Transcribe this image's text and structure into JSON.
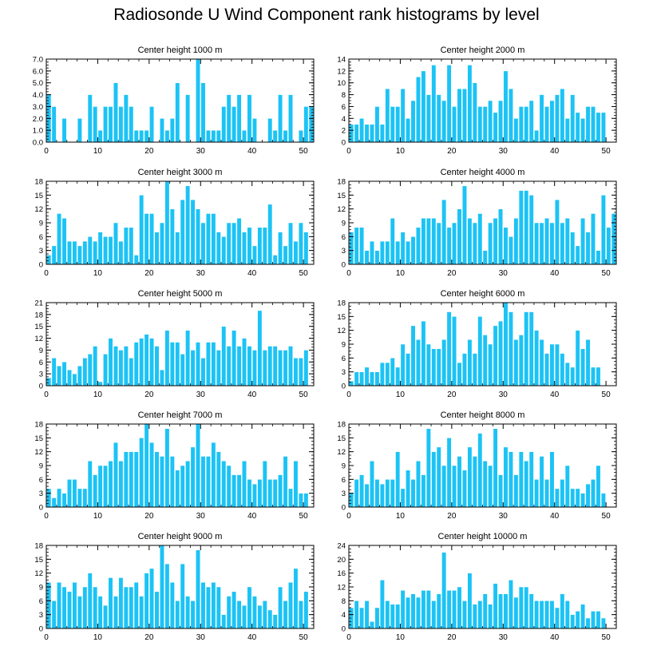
{
  "title": "Radiosonde U Wind Component rank histograms by level",
  "colors": {
    "bar": "#1CC3F5",
    "bar_edge": "#ffffff",
    "axis": "#000000"
  },
  "chart_data": [
    {
      "type": "bar",
      "title": "Center height 1000 m",
      "xlim": [
        0,
        52
      ],
      "ylim": [
        0,
        7
      ],
      "xticks": [
        0,
        10,
        20,
        30,
        40,
        50
      ],
      "yticks": [
        0,
        1,
        2,
        3,
        4,
        5,
        6,
        7
      ],
      "ytick_labels": [
        "0.0",
        "1.0",
        "2.0",
        "3.0",
        "4.0",
        "5.0",
        "6.0",
        "7.0"
      ],
      "values": [
        4,
        3,
        0,
        2,
        0,
        0,
        2,
        0,
        4,
        3,
        1,
        3,
        3,
        5,
        3,
        4,
        3,
        1,
        1,
        1,
        3,
        0,
        2,
        1,
        2,
        5,
        0,
        4,
        0,
        7,
        5,
        1,
        1,
        1,
        3,
        4,
        3,
        4,
        1,
        4,
        2,
        0,
        0,
        2,
        1,
        4,
        1,
        4,
        0,
        1,
        3,
        3
      ]
    },
    {
      "type": "bar",
      "title": "Center height 2000 m",
      "xlim": [
        0,
        52
      ],
      "ylim": [
        0,
        14
      ],
      "xticks": [
        0,
        10,
        20,
        30,
        40,
        50
      ],
      "yticks": [
        0,
        2,
        4,
        6,
        8,
        10,
        12,
        14
      ],
      "ytick_labels": [
        "0",
        "2",
        "4",
        "6",
        "8",
        "10",
        "12",
        "14"
      ],
      "values": [
        3,
        3,
        4,
        3,
        3,
        6,
        3,
        9,
        6,
        6,
        9,
        4,
        7,
        11,
        12,
        8,
        13,
        8,
        7,
        13,
        6,
        9,
        9,
        13,
        10,
        6,
        6,
        7,
        5,
        7,
        12,
        9,
        4,
        6,
        6,
        7,
        2,
        8,
        6,
        7,
        8,
        9,
        4,
        8,
        5,
        4,
        6,
        6,
        5,
        5,
        0,
        0
      ]
    },
    {
      "type": "bar",
      "title": "Center height 3000 m",
      "xlim": [
        0,
        52
      ],
      "ylim": [
        0,
        18
      ],
      "xticks": [
        0,
        10,
        20,
        30,
        40,
        50
      ],
      "yticks": [
        0,
        3,
        6,
        9,
        12,
        15,
        18
      ],
      "ytick_labels": [
        "0",
        "3",
        "6",
        "9",
        "12",
        "15",
        "18"
      ],
      "values": [
        2,
        4,
        11,
        10,
        5,
        5,
        4,
        5,
        6,
        5,
        7,
        6,
        6,
        9,
        5,
        8,
        8,
        2,
        15,
        11,
        11,
        7,
        9,
        18,
        12,
        7,
        14,
        17,
        14,
        12,
        9,
        11,
        11,
        7,
        6,
        9,
        9,
        10,
        7,
        8,
        4,
        8,
        8,
        13,
        2,
        7,
        4,
        9,
        5,
        9,
        7,
        0
      ]
    },
    {
      "type": "bar",
      "title": "Center height 4000 m",
      "xlim": [
        0,
        52
      ],
      "ylim": [
        0,
        18
      ],
      "xticks": [
        0,
        10,
        20,
        30,
        40,
        50
      ],
      "yticks": [
        0,
        3,
        6,
        9,
        12,
        15,
        18
      ],
      "ytick_labels": [
        "0",
        "3",
        "6",
        "9",
        "12",
        "15",
        "18"
      ],
      "values": [
        7,
        8,
        8,
        3,
        5,
        3,
        5,
        5,
        10,
        5,
        7,
        5,
        6,
        8,
        10,
        10,
        10,
        9,
        14,
        8,
        9,
        12,
        17,
        10,
        9,
        11,
        3,
        9,
        10,
        12,
        8,
        6,
        10,
        16,
        16,
        15,
        9,
        9,
        10,
        9,
        14,
        9,
        10,
        7,
        4,
        10,
        7,
        11,
        3,
        15,
        8,
        11
      ]
    },
    {
      "type": "bar",
      "title": "Center height 5000 m",
      "xlim": [
        0,
        52
      ],
      "ylim": [
        0,
        21
      ],
      "xticks": [
        0,
        10,
        20,
        30,
        40,
        50
      ],
      "yticks": [
        0,
        3,
        6,
        9,
        12,
        15,
        18,
        21
      ],
      "ytick_labels": [
        "0",
        "3",
        "6",
        "9",
        "12",
        "15",
        "18",
        "21"
      ],
      "values": [
        2,
        7,
        5,
        6,
        4,
        3,
        5,
        7,
        8,
        10,
        1,
        8,
        12,
        10,
        9,
        10,
        7,
        11,
        12,
        13,
        12,
        10,
        4,
        14,
        11,
        11,
        8,
        14,
        9,
        11,
        7,
        11,
        11,
        9,
        15,
        10,
        14,
        10,
        12,
        10,
        9,
        19,
        9,
        10,
        10,
        9,
        9,
        10,
        7,
        7,
        9,
        0
      ]
    },
    {
      "type": "bar",
      "title": "Center height 6000 m",
      "xlim": [
        0,
        52
      ],
      "ylim": [
        0,
        18
      ],
      "xticks": [
        0,
        10,
        20,
        30,
        40,
        50
      ],
      "yticks": [
        0,
        3,
        6,
        9,
        12,
        15,
        18
      ],
      "ytick_labels": [
        "0",
        "3",
        "6",
        "9",
        "12",
        "15",
        "18"
      ],
      "values": [
        1,
        3,
        3,
        4,
        3,
        3,
        5,
        5,
        6,
        4,
        9,
        7,
        13,
        10,
        14,
        9,
        8,
        8,
        10,
        16,
        15,
        5,
        7,
        10,
        7,
        15,
        11,
        9,
        13,
        14,
        18,
        16,
        10,
        11,
        16,
        16,
        12,
        10,
        7,
        9,
        9,
        7,
        5,
        4,
        12,
        8,
        10,
        4,
        4,
        0,
        0,
        0
      ]
    },
    {
      "type": "bar",
      "title": "Center height 7000 m",
      "xlim": [
        0,
        52
      ],
      "ylim": [
        0,
        18
      ],
      "xticks": [
        0,
        10,
        20,
        30,
        40,
        50
      ],
      "yticks": [
        0,
        3,
        6,
        9,
        12,
        15,
        18
      ],
      "ytick_labels": [
        "0",
        "3",
        "6",
        "9",
        "12",
        "15",
        "18"
      ],
      "values": [
        4,
        2,
        4,
        3,
        6,
        6,
        4,
        4,
        10,
        7,
        9,
        9,
        10,
        14,
        10,
        12,
        12,
        12,
        15,
        18,
        14,
        12,
        11,
        17,
        11,
        8,
        9,
        10,
        13,
        18,
        11,
        11,
        14,
        12,
        10,
        9,
        7,
        7,
        10,
        6,
        5,
        6,
        10,
        6,
        6,
        7,
        11,
        4,
        10,
        3,
        3,
        0
      ]
    },
    {
      "type": "bar",
      "title": "Center height 8000 m",
      "xlim": [
        0,
        52
      ],
      "ylim": [
        0,
        18
      ],
      "xticks": [
        0,
        10,
        20,
        30,
        40,
        50
      ],
      "yticks": [
        0,
        3,
        6,
        9,
        12,
        15,
        18
      ],
      "ytick_labels": [
        "0",
        "3",
        "6",
        "9",
        "12",
        "15",
        "18"
      ],
      "values": [
        3,
        6,
        7,
        5,
        10,
        6,
        5,
        6,
        6,
        12,
        4,
        8,
        6,
        10,
        7,
        17,
        12,
        13,
        9,
        15,
        9,
        11,
        8,
        13,
        11,
        16,
        10,
        9,
        17,
        7,
        13,
        12,
        7,
        12,
        10,
        12,
        6,
        11,
        6,
        12,
        4,
        6,
        9,
        4,
        4,
        3,
        5,
        6,
        9,
        3,
        0,
        0
      ]
    },
    {
      "type": "bar",
      "title": "Center height 9000 m",
      "xlim": [
        0,
        52
      ],
      "ylim": [
        0,
        18
      ],
      "xticks": [
        0,
        10,
        20,
        30,
        40,
        50
      ],
      "yticks": [
        0,
        3,
        6,
        9,
        12,
        15,
        18
      ],
      "ytick_labels": [
        "0",
        "3",
        "6",
        "9",
        "12",
        "15",
        "18"
      ],
      "values": [
        10,
        6,
        10,
        9,
        8,
        10,
        7,
        9,
        12,
        9,
        7,
        5,
        11,
        7,
        11,
        9,
        9,
        10,
        7,
        12,
        13,
        8,
        18,
        14,
        10,
        6,
        14,
        7,
        6,
        17,
        10,
        9,
        10,
        9,
        3,
        7,
        8,
        6,
        5,
        9,
        7,
        5,
        6,
        4,
        3,
        9,
        6,
        10,
        13,
        6,
        8,
        0
      ]
    },
    {
      "type": "bar",
      "title": "Center height 10000 m",
      "xlim": [
        0,
        52
      ],
      "ylim": [
        0,
        24
      ],
      "xticks": [
        0,
        10,
        20,
        30,
        40,
        50
      ],
      "yticks": [
        0,
        4,
        8,
        12,
        16,
        20,
        24
      ],
      "ytick_labels": [
        "0",
        "4",
        "8",
        "12",
        "16",
        "20",
        "24"
      ],
      "values": [
        6,
        8,
        6,
        8,
        2,
        6,
        14,
        8,
        7,
        7,
        11,
        9,
        10,
        9,
        11,
        11,
        8,
        10,
        22,
        11,
        11,
        12,
        8,
        16,
        7,
        8,
        10,
        7,
        13,
        10,
        10,
        14,
        9,
        12,
        12,
        10,
        8,
        8,
        8,
        8,
        6,
        10,
        8,
        4,
        5,
        7,
        3,
        5,
        5,
        3,
        0,
        0
      ]
    }
  ]
}
